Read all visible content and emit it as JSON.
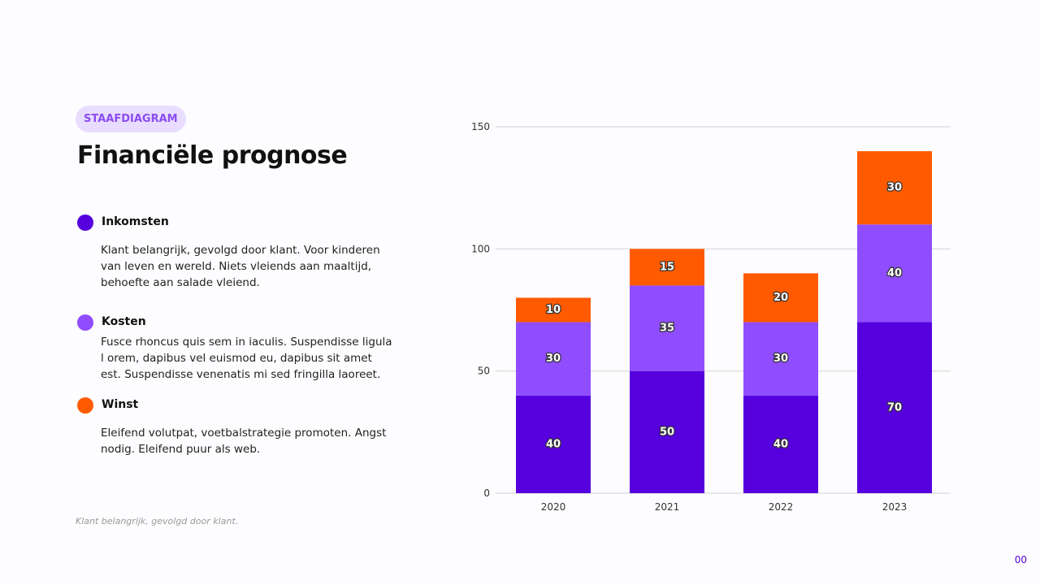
{
  "badge": "STAAFDIAGRAM",
  "title": "Financiële prognose",
  "legend": [
    {
      "label": "Inkomsten",
      "color": "#5500dd",
      "text": "Klant belangrijk, gevolgd door klant. Voor kinderen van leven en wereld. Niets vleiends aan maaltijd, behoefte aan salade vleiend."
    },
    {
      "label": "Kosten",
      "color": "#8f4dff",
      "text": "Fusce rhoncus quis sem in iaculis. Suspendisse ligula l orem, dapibus vel euismod eu, dapibus sit amet est. Suspendisse venenatis mi sed fringilla laoreet."
    },
    {
      "label": "Winst",
      "color": "#ff5a00",
      "text": "Eleifend volutpat, voetbalstrategie promoten. Angst nodig. Eleifend puur als web."
    }
  ],
  "footnote": "Klant belangrijk, gevolgd door klant.",
  "page_number": "00",
  "chart_data": {
    "type": "bar",
    "stacked": true,
    "categories": [
      "2020",
      "2021",
      "2022",
      "2023"
    ],
    "series": [
      {
        "name": "Inkomsten",
        "color": "#5500dd",
        "values": [
          40,
          50,
          40,
          70
        ]
      },
      {
        "name": "Kosten",
        "color": "#8f4dff",
        "values": [
          30,
          35,
          30,
          40
        ]
      },
      {
        "name": "Winst",
        "color": "#ff5a00",
        "values": [
          10,
          15,
          20,
          30
        ]
      }
    ],
    "ylim": [
      0,
      150
    ],
    "yticks": [
      0,
      50,
      100,
      150
    ],
    "grid": true,
    "data_labels": true
  }
}
